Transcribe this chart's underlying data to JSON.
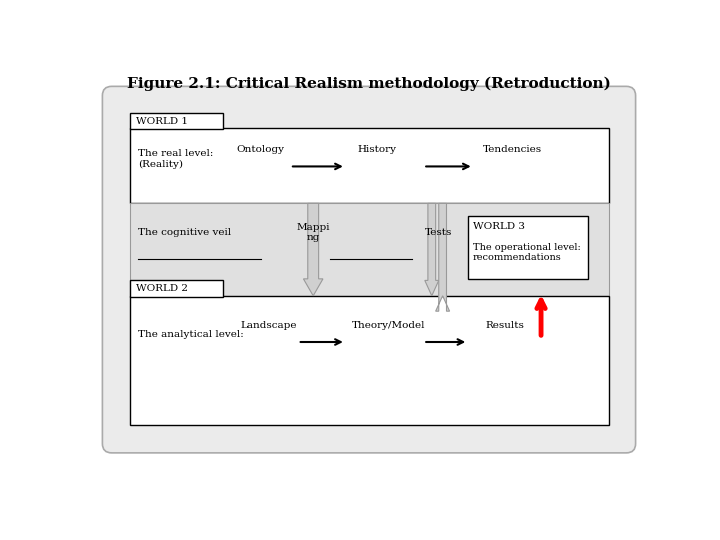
{
  "title": "Figure 2.1: Critical Realism methodology (Retroduction)",
  "title_fontsize": 11,
  "title_fontweight": "bold",
  "world1_label": "WORLD 1",
  "world2_label": "WORLD 2",
  "world3_label": "WORLD 3",
  "world3_desc": "The operational level:\nrecommendations",
  "real_level": "The real level:\n(Reality)",
  "cognitive_veil": "The cognitive veil",
  "analytical_level": "The analytical level:",
  "ontology": "Ontology",
  "history": "History",
  "tendencies": "Tendencies",
  "mapping": "Mappi\nng",
  "tests": "Tests",
  "landscape": "Landscape",
  "theory_model": "Theory/Model",
  "results": "Results",
  "small_fontsize": 7.5,
  "outer_bg": "#ebebeb",
  "middle_bg": "#e0e0e0",
  "white_bg": "#ffffff",
  "arrow_gray": "#b0b0b0",
  "arrow_gray_face": "#c8c8c8"
}
